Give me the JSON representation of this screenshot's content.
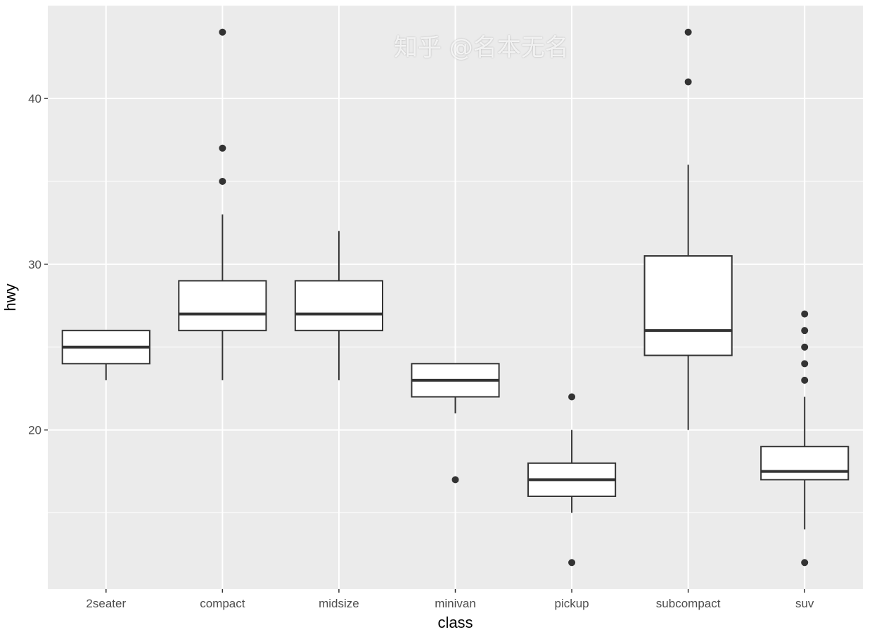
{
  "chart_data": {
    "type": "boxplot",
    "xlabel": "class",
    "ylabel": "hwy",
    "ylim": [
      10.4,
      45.6
    ],
    "yticks": [
      20,
      30,
      40
    ],
    "yminor": [
      15,
      25,
      35
    ],
    "grid": true,
    "panel_background": "#EBEBEB",
    "categories": [
      "2seater",
      "compact",
      "midsize",
      "minivan",
      "pickup",
      "subcompact",
      "suv"
    ],
    "boxes": [
      {
        "lower": 23,
        "q1": 24,
        "median": 25,
        "q3": 26,
        "upper": 26,
        "outliers": []
      },
      {
        "lower": 23,
        "q1": 26,
        "median": 27,
        "q3": 29,
        "upper": 33,
        "outliers": [
          35,
          37,
          44
        ]
      },
      {
        "lower": 23,
        "q1": 26,
        "median": 27,
        "q3": 29,
        "upper": 32,
        "outliers": []
      },
      {
        "lower": 21,
        "q1": 22,
        "median": 23,
        "q3": 24,
        "upper": 24,
        "outliers": [
          17
        ]
      },
      {
        "lower": 15,
        "q1": 16,
        "median": 17,
        "q3": 18,
        "upper": 20,
        "outliers": [
          12,
          22
        ]
      },
      {
        "lower": 20,
        "q1": 24.5,
        "median": 26,
        "q3": 30.5,
        "upper": 36,
        "outliers": [
          41,
          44
        ]
      },
      {
        "lower": 14,
        "q1": 17,
        "median": 17.5,
        "q3": 19,
        "upper": 22,
        "outliers": [
          12,
          23,
          24,
          25,
          26,
          27
        ]
      }
    ]
  },
  "watermark": "知乎 @名本无名"
}
